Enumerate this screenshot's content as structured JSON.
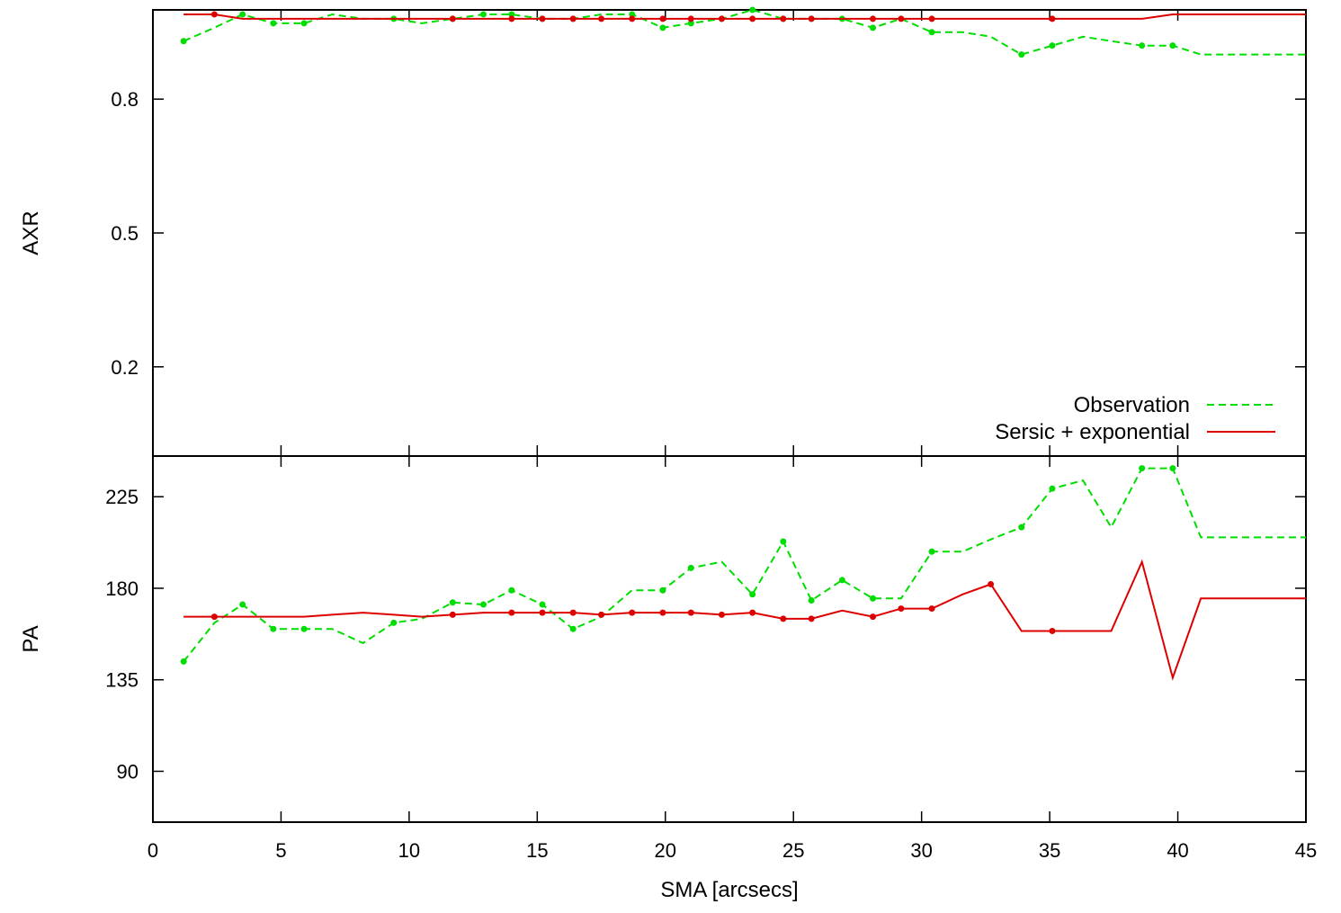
{
  "chart_data": [
    {
      "type": "line",
      "ylabel": "AXR",
      "xlim": [
        0,
        45
      ],
      "ylim": [
        0,
        1.0
      ],
      "yticks": [
        0.2,
        0.5,
        0.8
      ],
      "ytick_labels": [
        "0.2",
        "0.5",
        "0.8"
      ],
      "grid": false,
      "legend": {
        "placement": "bottom-right",
        "entries": [
          {
            "label": "Observation",
            "color": "#00dd00",
            "dash": "dashed"
          },
          {
            "label": "Sersic + exponential",
            "color": "#dd0000",
            "dash": "solid"
          }
        ]
      },
      "series": [
        {
          "name": "Observation",
          "color": "#00dd00",
          "style": "dashed",
          "x": [
            1.2,
            2.4,
            3.5,
            4.7,
            5.9,
            7.0,
            8.2,
            9.4,
            10.5,
            11.7,
            12.9,
            14.0,
            15.2,
            16.4,
            17.5,
            18.7,
            19.9,
            21.0,
            22.2,
            23.4,
            24.6,
            25.7,
            26.9,
            28.1,
            29.2,
            30.4,
            31.6,
            32.7,
            33.9,
            35.1,
            36.3,
            37.4,
            38.6,
            39.8,
            40.9,
            45.0
          ],
          "y": [
            0.93,
            0.96,
            0.99,
            0.97,
            0.97,
            0.99,
            0.98,
            0.98,
            0.97,
            0.98,
            0.99,
            0.99,
            0.98,
            0.98,
            0.99,
            0.99,
            0.96,
            0.97,
            0.98,
            1.0,
            0.98,
            0.98,
            0.98,
            0.96,
            0.98,
            0.95,
            0.95,
            0.94,
            0.9,
            0.92,
            0.94,
            0.93,
            0.92,
            0.92,
            0.9,
            0.9
          ],
          "markers": [
            true,
            false,
            true,
            true,
            true,
            false,
            false,
            true,
            false,
            true,
            true,
            true,
            true,
            true,
            false,
            true,
            true,
            true,
            true,
            true,
            true,
            true,
            true,
            true,
            false,
            true,
            false,
            false,
            true,
            true,
            false,
            false,
            true,
            true,
            false,
            false
          ]
        },
        {
          "name": "Sersic + exponential",
          "color": "#dd0000",
          "style": "solid",
          "x": [
            1.2,
            2.4,
            3.5,
            4.7,
            5.9,
            7.0,
            8.2,
            9.4,
            10.5,
            11.7,
            12.9,
            14.0,
            15.2,
            16.4,
            17.5,
            18.7,
            19.9,
            21.0,
            22.2,
            23.4,
            24.6,
            25.7,
            26.9,
            28.1,
            29.2,
            30.4,
            31.6,
            32.7,
            33.9,
            35.1,
            36.3,
            37.4,
            38.6,
            39.8,
            40.9,
            45.0
          ],
          "y": [
            0.99,
            0.99,
            0.98,
            0.98,
            0.98,
            0.98,
            0.98,
            0.98,
            0.98,
            0.98,
            0.98,
            0.98,
            0.98,
            0.98,
            0.98,
            0.98,
            0.98,
            0.98,
            0.98,
            0.98,
            0.98,
            0.98,
            0.98,
            0.98,
            0.98,
            0.98,
            0.98,
            0.98,
            0.98,
            0.98,
            0.98,
            0.98,
            0.98,
            0.99,
            0.99,
            0.99
          ],
          "markers": [
            false,
            true,
            false,
            false,
            false,
            false,
            false,
            false,
            false,
            true,
            false,
            true,
            true,
            true,
            true,
            true,
            true,
            true,
            true,
            true,
            true,
            true,
            false,
            true,
            true,
            true,
            false,
            false,
            false,
            true,
            false,
            false,
            false,
            false,
            false,
            false
          ]
        }
      ]
    },
    {
      "type": "line",
      "ylabel": "PA",
      "xlabel": "SMA [arcsecs]",
      "xlim": [
        0,
        45
      ],
      "ylim": [
        65,
        245
      ],
      "yticks": [
        90,
        135,
        180,
        225
      ],
      "ytick_labels": [
        "90",
        "135",
        "180",
        "225"
      ],
      "xticks": [
        0,
        5,
        10,
        15,
        20,
        25,
        30,
        35,
        40,
        45
      ],
      "xtick_labels": [
        "0",
        "5",
        "10",
        "15",
        "20",
        "25",
        "30",
        "35",
        "40",
        "45"
      ],
      "grid": false,
      "series": [
        {
          "name": "Observation",
          "color": "#00dd00",
          "style": "dashed",
          "x": [
            1.2,
            2.4,
            3.5,
            4.7,
            5.9,
            7.0,
            8.2,
            9.4,
            10.5,
            11.7,
            12.9,
            14.0,
            15.2,
            16.4,
            17.5,
            18.7,
            19.9,
            21.0,
            22.2,
            23.4,
            24.6,
            25.7,
            26.9,
            28.1,
            29.2,
            30.4,
            31.6,
            32.7,
            33.9,
            35.1,
            36.3,
            37.4,
            38.6,
            39.8,
            40.9,
            45.0
          ],
          "y": [
            144,
            163,
            172,
            160,
            160,
            160,
            153,
            163,
            165,
            173,
            172,
            179,
            172,
            160,
            166,
            179,
            179,
            190,
            193,
            177,
            203,
            174,
            184,
            175,
            175,
            198,
            198,
            204,
            210,
            229,
            233,
            210,
            239,
            239,
            205,
            205
          ],
          "markers": [
            true,
            false,
            true,
            true,
            true,
            false,
            false,
            true,
            false,
            true,
            true,
            true,
            true,
            true,
            false,
            false,
            true,
            true,
            false,
            true,
            true,
            true,
            true,
            true,
            false,
            true,
            false,
            false,
            true,
            true,
            false,
            false,
            true,
            true,
            false,
            false
          ]
        },
        {
          "name": "Sersic + exponential",
          "color": "#dd0000",
          "style": "solid",
          "x": [
            1.2,
            2.4,
            3.5,
            4.7,
            5.9,
            7.0,
            8.2,
            9.4,
            10.5,
            11.7,
            12.9,
            14.0,
            15.2,
            16.4,
            17.5,
            18.7,
            19.9,
            21.0,
            22.2,
            23.4,
            24.6,
            25.7,
            26.9,
            28.1,
            29.2,
            30.4,
            31.6,
            32.7,
            33.9,
            35.1,
            36.3,
            37.4,
            38.6,
            39.8,
            40.9,
            45.0
          ],
          "y": [
            166,
            166,
            166,
            166,
            166,
            167,
            168,
            167,
            166,
            167,
            168,
            168,
            168,
            168,
            167,
            168,
            168,
            168,
            167,
            168,
            165,
            165,
            169,
            166,
            170,
            170,
            177,
            182,
            159,
            159,
            159,
            159,
            193,
            136,
            175,
            175
          ],
          "markers": [
            false,
            true,
            false,
            false,
            false,
            false,
            false,
            false,
            false,
            true,
            false,
            true,
            true,
            true,
            true,
            true,
            true,
            true,
            true,
            true,
            true,
            true,
            false,
            true,
            true,
            true,
            false,
            true,
            false,
            true,
            false,
            false,
            false,
            false,
            false,
            false
          ]
        }
      ]
    }
  ]
}
